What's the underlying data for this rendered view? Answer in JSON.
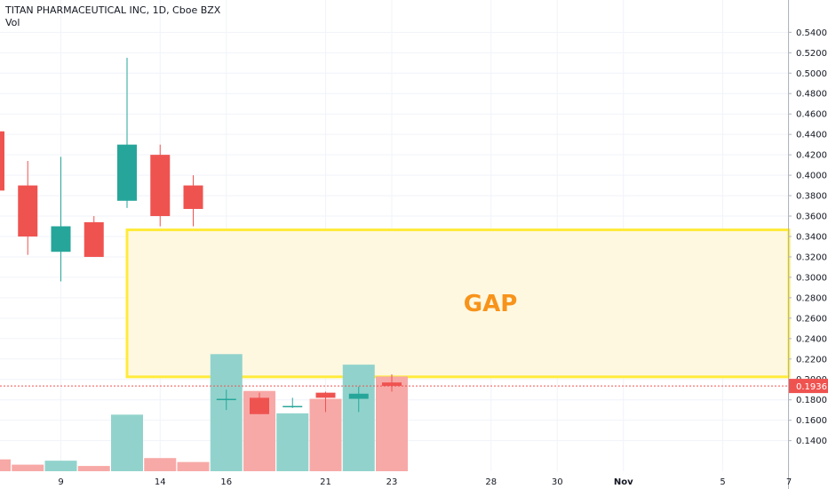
{
  "header": {
    "title": "TITAN PHARMACEUTICAL INC, 1D, Cboe BZX",
    "volume_label": "Vol"
  },
  "annotation": {
    "text": "GAP",
    "color": "#f7931a",
    "box_fill": "#fff8e1",
    "box_stroke": "#ffeb3b",
    "y_range": [
      0.2025,
      0.3465
    ]
  },
  "last_price": {
    "label": "0.1936",
    "value": 0.1936,
    "color": "#ef5350"
  },
  "colors": {
    "up": "#26a69a",
    "down": "#ef5350",
    "up_volume": "#91d3cc",
    "down_volume": "#f7a9a7",
    "grid": "#f0f3fa"
  },
  "chart_data": {
    "type": "candlestick",
    "ylim": [
      0.124,
      0.5525
    ],
    "y_ticks": [
      "0.1400",
      "0.1600",
      "0.1800",
      "0.2000",
      "0.2200",
      "0.2400",
      "0.2600",
      "0.2800",
      "0.3000",
      "0.3200",
      "0.3400",
      "0.3600",
      "0.3800",
      "0.4000",
      "0.4200",
      "0.4400",
      "0.4600",
      "0.4800",
      "0.5000",
      "0.5200",
      "0.5400"
    ],
    "x_ticks": [
      {
        "label": "9",
        "index": 2
      },
      {
        "label": "14",
        "index": 5
      },
      {
        "label": "16",
        "index": 7
      },
      {
        "label": "21",
        "index": 10
      },
      {
        "label": "23",
        "index": 12
      },
      {
        "label": "28",
        "index": 15
      },
      {
        "label": "30",
        "index": 17
      },
      {
        "label": "Nov",
        "index": 19
      },
      {
        "label": "5",
        "index": 22
      },
      {
        "label": "7",
        "index": 24
      }
    ],
    "candles": [
      {
        "index": 0,
        "open": 0.443,
        "high": 0.443,
        "low": 0.385,
        "close": 0.385,
        "volume": 0.09
      },
      {
        "index": 1,
        "open": 0.39,
        "high": 0.414,
        "low": 0.322,
        "close": 0.34,
        "volume": 0.05
      },
      {
        "index": 2,
        "open": 0.325,
        "high": 0.418,
        "low": 0.296,
        "close": 0.35,
        "volume": 0.08
      },
      {
        "index": 3,
        "open": 0.354,
        "high": 0.36,
        "low": 0.32,
        "close": 0.32,
        "volume": 0.04
      },
      {
        "index": 4,
        "open": 0.375,
        "high": 0.515,
        "low": 0.368,
        "close": 0.43,
        "volume": 0.43
      },
      {
        "index": 5,
        "open": 0.42,
        "high": 0.43,
        "low": 0.35,
        "close": 0.36,
        "volume": 0.1
      },
      {
        "index": 6,
        "open": 0.39,
        "high": 0.4,
        "low": 0.35,
        "close": 0.367,
        "volume": 0.07
      },
      {
        "index": 7,
        "open": 0.18,
        "high": 0.19,
        "low": 0.17,
        "close": 0.181,
        "volume": 0.89
      },
      {
        "index": 8,
        "open": 0.182,
        "high": 0.187,
        "low": 0.166,
        "close": 0.166,
        "volume": 0.61
      },
      {
        "index": 9,
        "open": 0.173,
        "high": 0.182,
        "low": 0.172,
        "close": 0.174,
        "volume": 0.44
      },
      {
        "index": 10,
        "open": 0.187,
        "high": 0.188,
        "low": 0.168,
        "close": 0.182,
        "volume": 0.55
      },
      {
        "index": 11,
        "open": 0.181,
        "high": 0.193,
        "low": 0.168,
        "close": 0.186,
        "volume": 0.81
      },
      {
        "index": 12,
        "open": 0.197,
        "high": 0.205,
        "low": 0.188,
        "close": 0.1936,
        "volume": 0.72
      }
    ]
  }
}
